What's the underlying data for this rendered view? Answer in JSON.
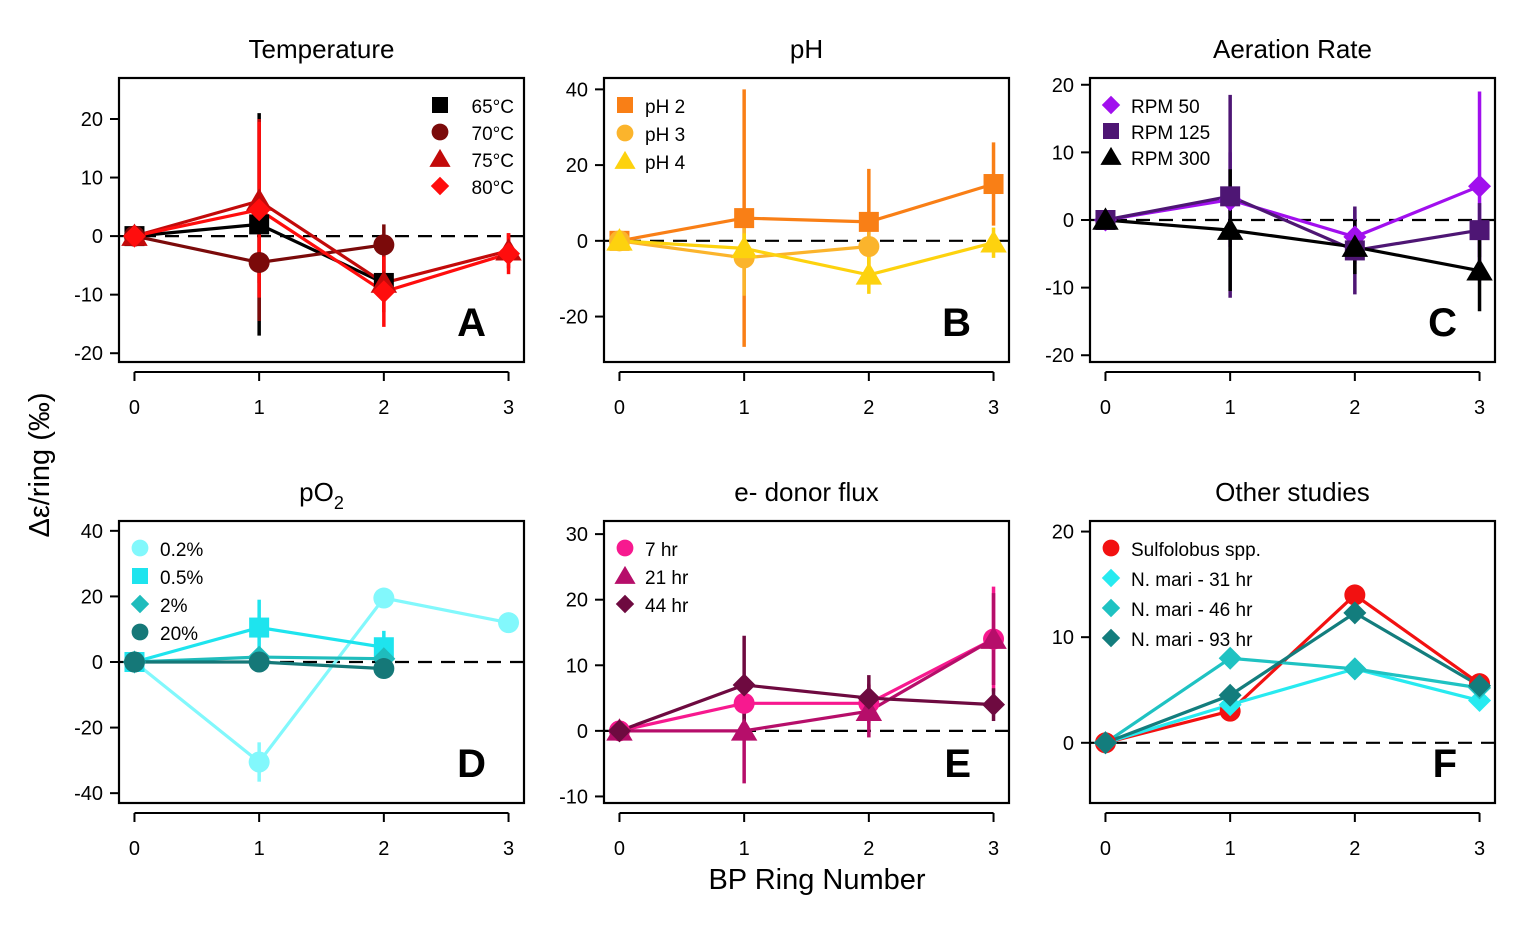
{
  "figure": {
    "xlabel": "BP Ring Number",
    "ylabel": "Δε/ring (‰)"
  },
  "chart_data": [
    {
      "type": "line",
      "title": "Temperature",
      "letter": "A",
      "x": [
        0,
        1,
        2,
        3
      ],
      "xlim": [
        -0.1,
        3.1
      ],
      "ylim": [
        -21.5,
        27
      ],
      "yticks": [
        -20,
        -10,
        0,
        10,
        20
      ],
      "reference_line": 0,
      "legend_position": "top-right",
      "series": [
        {
          "name": "65°C",
          "color": "#000000",
          "marker": "square",
          "y": [
            0,
            2,
            -8,
            null
          ],
          "err": [
            0.5,
            19,
            3,
            null
          ]
        },
        {
          "name": "70°C",
          "color": "#7b0a0a",
          "marker": "circle",
          "y": [
            0,
            -4.5,
            -1.5,
            null
          ],
          "err": [
            0.5,
            10,
            3.5,
            null
          ]
        },
        {
          "name": "75°C",
          "color": "#c20a0a",
          "marker": "triangle",
          "y": [
            0,
            6,
            -8,
            -2.5
          ],
          "err": [
            0.5,
            14,
            5,
            3
          ]
        },
        {
          "name": "80°C",
          "color": "#ff0d0d",
          "marker": "diamond",
          "y": [
            0,
            4.5,
            -9.5,
            -3
          ],
          "err": [
            0.5,
            15,
            6,
            3.5
          ]
        }
      ]
    },
    {
      "type": "line",
      "title": "pH",
      "letter": "B",
      "x": [
        0,
        1,
        2,
        3
      ],
      "xlim": [
        -0.1,
        3.1
      ],
      "ylim": [
        -32,
        43
      ],
      "yticks": [
        -20,
        0,
        20,
        40
      ],
      "reference_line": 0,
      "legend_position": "top-left",
      "series": [
        {
          "name": "pH 2",
          "color": "#f97f16",
          "marker": "square",
          "y": [
            0,
            6,
            5,
            15
          ],
          "err": [
            0.5,
            34,
            14,
            11
          ]
        },
        {
          "name": "pH 3",
          "color": "#fbb42c",
          "marker": "circle",
          "y": [
            0,
            -4.5,
            -1.5,
            null
          ],
          "err": [
            0.5,
            10,
            5,
            null
          ]
        },
        {
          "name": "pH 4",
          "color": "#fdd20e",
          "marker": "triangle",
          "y": [
            0,
            -2,
            -9,
            -0.5
          ],
          "err": [
            0.5,
            4,
            5,
            4
          ]
        }
      ]
    },
    {
      "type": "line",
      "title": "Aeration Rate",
      "letter": "C",
      "x": [
        0,
        1,
        2,
        3
      ],
      "xlim": [
        -0.1,
        3.1
      ],
      "ylim": [
        -21,
        21
      ],
      "yticks": [
        -20,
        -10,
        0,
        10,
        20
      ],
      "reference_line": 0,
      "legend_position": "top-left",
      "series": [
        {
          "name": "RPM 50",
          "color": "#a10fee",
          "marker": "diamond",
          "y": [
            0,
            3,
            -2.5,
            5
          ],
          "err": [
            0.5,
            7,
            4,
            14
          ]
        },
        {
          "name": "RPM 125",
          "color": "#4e1674",
          "marker": "square",
          "y": [
            0,
            3.5,
            -4.5,
            -1.5
          ],
          "err": [
            0.5,
            15,
            6.5,
            4
          ]
        },
        {
          "name": "RPM 300",
          "color": "#000000",
          "marker": "triangle",
          "y": [
            0,
            -1.5,
            -4,
            -7.5
          ],
          "err": [
            0.5,
            9,
            4,
            6
          ]
        }
      ]
    },
    {
      "type": "line",
      "title": "pO",
      "title_sub": "2",
      "letter": "D",
      "x": [
        0,
        1,
        2,
        3
      ],
      "xlim": [
        -0.1,
        3.1
      ],
      "ylim": [
        -43,
        43
      ],
      "yticks": [
        -40,
        -20,
        0,
        20,
        40
      ],
      "reference_line": 0,
      "legend_position": "top-left",
      "series": [
        {
          "name": "0.2%",
          "color": "#82f8fc",
          "marker": "circle",
          "y": [
            0,
            -30.5,
            19.5,
            12
          ],
          "err": [
            0.5,
            6,
            2,
            1
          ]
        },
        {
          "name": "0.5%",
          "color": "#1ee4ee",
          "marker": "square",
          "y": [
            0,
            10.5,
            4.5,
            null
          ],
          "err": [
            0.5,
            8.5,
            5,
            null
          ]
        },
        {
          "name": "2%",
          "color": "#1fbcbc",
          "marker": "diamond",
          "y": [
            0,
            1.5,
            1,
            null
          ],
          "err": [
            0.5,
            2,
            2,
            null
          ]
        },
        {
          "name": "20%",
          "color": "#157878",
          "marker": "circle",
          "y": [
            0,
            0,
            -2,
            null
          ],
          "err": [
            0.5,
            1.5,
            1.5,
            null
          ]
        }
      ]
    },
    {
      "type": "line",
      "title": "e- donor flux",
      "letter": "E",
      "x": [
        0,
        1,
        2,
        3
      ],
      "xlim": [
        -0.1,
        3.1
      ],
      "ylim": [
        -11,
        32
      ],
      "yticks": [
        -10,
        0,
        10,
        20,
        30
      ],
      "reference_line": 0,
      "legend_position": "top-left",
      "series": [
        {
          "name": "7 hr",
          "color": "#f7198f",
          "marker": "circle",
          "y": [
            0,
            4.2,
            4.2,
            14
          ],
          "err": [
            0.5,
            3,
            3,
            8
          ]
        },
        {
          "name": "21 hr",
          "color": "#b60e6a",
          "marker": "triangle",
          "y": [
            0,
            0,
            3,
            14
          ],
          "err": [
            0.5,
            8,
            4,
            7
          ]
        },
        {
          "name": "44 hr",
          "color": "#6e0a40",
          "marker": "diamond",
          "y": [
            0,
            7,
            5,
            4
          ],
          "err": [
            0.5,
            7.5,
            3.5,
            2.5
          ]
        }
      ]
    },
    {
      "type": "line",
      "title": "Other studies",
      "letter": "F",
      "x": [
        0,
        1,
        2,
        3
      ],
      "xlim": [
        -0.1,
        3.1
      ],
      "ylim": [
        -5.7,
        21
      ],
      "yticks": [
        0,
        10,
        20
      ],
      "reference_line": 0,
      "legend_position": "top-left",
      "series": [
        {
          "name": "Sulfolobus spp.",
          "color": "#f21111",
          "marker": "circle",
          "y": [
            0,
            3,
            14,
            5.6
          ],
          "err": [
            null,
            null,
            null,
            null
          ]
        },
        {
          "name": "N. mari - 31 hr",
          "color": "#27eaf0",
          "marker": "diamond",
          "y": [
            0,
            3.6,
            7,
            4
          ],
          "err": [
            null,
            null,
            null,
            null
          ]
        },
        {
          "name": "N. mari - 46 hr",
          "color": "#1fc2c2",
          "marker": "diamond",
          "y": [
            0,
            8,
            7,
            5.2
          ],
          "err": [
            null,
            null,
            null,
            null
          ]
        },
        {
          "name": "N. mari - 93 hr",
          "color": "#137d7d",
          "marker": "diamond",
          "y": [
            0,
            4.5,
            12.3,
            5.4
          ],
          "err": [
            null,
            null,
            null,
            null
          ]
        }
      ]
    }
  ]
}
